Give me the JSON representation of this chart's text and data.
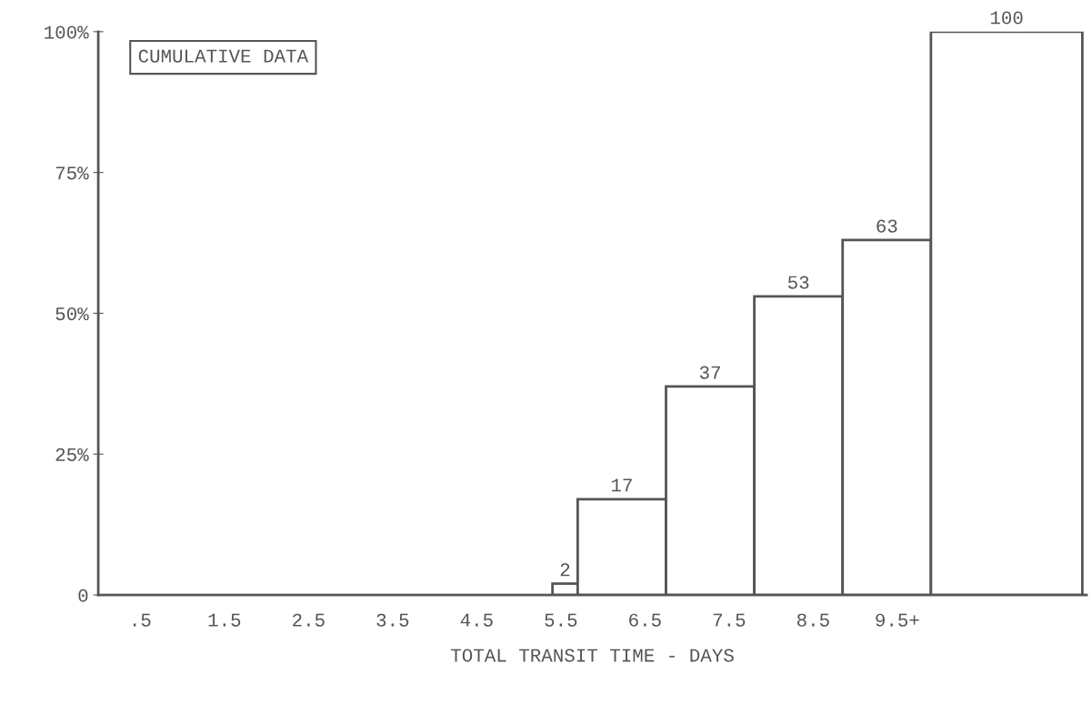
{
  "chart_data": {
    "type": "histogram",
    "color": "#ffffff",
    "bins": [
      5.4,
      5.7,
      6.75,
      7.8,
      8.85,
      9.9,
      11.7
    ],
    "values": [
      2,
      17,
      37,
      53,
      63,
      100
    ],
    "data_labels": true,
    "xlabel": "TOTAL TRANSIT TIME - DAYS",
    "xlim": [
      0,
      11.75
    ],
    "xticks": [
      {
        "value": 0.5,
        "label": ".5"
      },
      1.5,
      2.5,
      3.5,
      4.5,
      5.5,
      6.5,
      7.5,
      8.5,
      {
        "value": 9.5,
        "label": "9.5+"
      }
    ],
    "ylim": [
      0,
      100
    ],
    "yticks": [
      0,
      {
        "value": 25,
        "label": "25%"
      },
      {
        "value": 50,
        "label": "50%"
      },
      {
        "value": 75,
        "label": "75%"
      },
      {
        "value": 100,
        "label": "100%"
      }
    ],
    "annotations": [
      "CUMULATIVE DATA"
    ],
    "grid": false,
    "legend": false
  }
}
